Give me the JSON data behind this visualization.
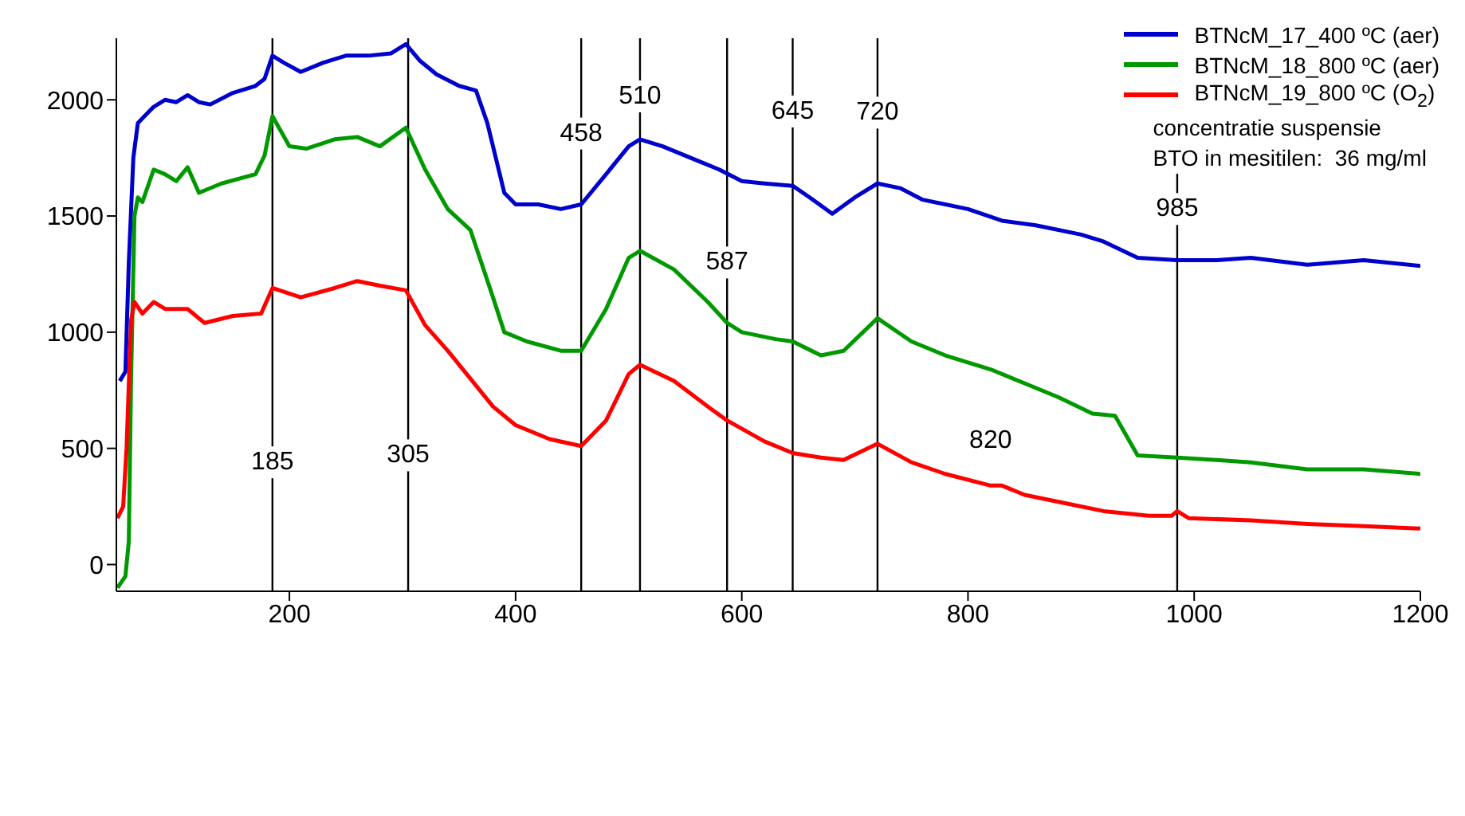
{
  "chart_data": {
    "type": "line",
    "xlim": [
      47,
      1200
    ],
    "xticks": [
      200,
      400,
      600,
      800,
      1000,
      1200
    ],
    "ylim": [
      -115,
      2265
    ],
    "yticks": [
      0,
      500,
      1000,
      1500,
      2000
    ],
    "grid": false,
    "legend": "top right",
    "marker": "none",
    "line_style": "solid",
    "series": [
      {
        "name": "BTNcM_17_400 ºC (aer)",
        "color": "#0000cc",
        "x": [
          50,
          55,
          58,
          62,
          66,
          70,
          80,
          90,
          100,
          110,
          120,
          130,
          150,
          170,
          178,
          185,
          195,
          210,
          230,
          250,
          270,
          290,
          303,
          315,
          330,
          350,
          365,
          375,
          390,
          400,
          420,
          440,
          458,
          480,
          500,
          510,
          530,
          560,
          580,
          600,
          620,
          645,
          660,
          680,
          700,
          720,
          740,
          760,
          800,
          830,
          860,
          900,
          920,
          950,
          985,
          1020,
          1050,
          1100,
          1150,
          1200
        ],
        "values": [
          790,
          830,
          1300,
          1750,
          1900,
          1920,
          1970,
          2000,
          1990,
          2020,
          1990,
          1980,
          2030,
          2060,
          2090,
          2190,
          2160,
          2120,
          2160,
          2190,
          2190,
          2200,
          2240,
          2170,
          2110,
          2060,
          2040,
          1900,
          1600,
          1550,
          1550,
          1530,
          1550,
          1680,
          1800,
          1830,
          1800,
          1740,
          1700,
          1650,
          1640,
          1630,
          1580,
          1510,
          1580,
          1640,
          1620,
          1570,
          1530,
          1480,
          1460,
          1420,
          1390,
          1320,
          1310,
          1310,
          1320,
          1290,
          1310,
          1285
        ]
      },
      {
        "name": "BTNcM_18_800 ºC (aer)",
        "color": "#009900",
        "x": [
          48,
          55,
          58,
          60,
          63,
          66,
          70,
          80,
          90,
          100,
          110,
          120,
          140,
          170,
          178,
          185,
          200,
          215,
          240,
          260,
          280,
          303,
          320,
          340,
          360,
          380,
          390,
          410,
          440,
          458,
          480,
          500,
          510,
          540,
          570,
          587,
          600,
          630,
          645,
          670,
          690,
          720,
          750,
          780,
          820,
          850,
          880,
          910,
          930,
          950,
          985,
          1020,
          1050,
          1100,
          1150,
          1200
        ],
        "values": [
          -100,
          -50,
          100,
          800,
          1500,
          1580,
          1560,
          1700,
          1680,
          1650,
          1710,
          1600,
          1640,
          1680,
          1760,
          1930,
          1800,
          1790,
          1830,
          1840,
          1800,
          1880,
          1700,
          1530,
          1440,
          1150,
          1000,
          960,
          920,
          920,
          1100,
          1320,
          1350,
          1270,
          1130,
          1040,
          1000,
          970,
          960,
          900,
          920,
          1060,
          960,
          900,
          840,
          780,
          720,
          650,
          640,
          470,
          460,
          450,
          440,
          410,
          410,
          390
        ]
      },
      {
        "name": "BTNcM_19_800 ºC (O$_{2}$)",
        "color": "#ff0000",
        "x": [
          48,
          53,
          56,
          60,
          63,
          70,
          80,
          90,
          110,
          125,
          150,
          175,
          185,
          210,
          240,
          260,
          280,
          303,
          320,
          340,
          360,
          380,
          400,
          430,
          458,
          480,
          500,
          510,
          540,
          570,
          587,
          620,
          645,
          670,
          690,
          720,
          750,
          780,
          820,
          830,
          850,
          880,
          920,
          960,
          980,
          985,
          995,
          1050,
          1100,
          1150,
          1200
        ],
        "values": [
          200,
          250,
          500,
          1050,
          1130,
          1080,
          1130,
          1100,
          1100,
          1040,
          1070,
          1080,
          1190,
          1150,
          1190,
          1220,
          1200,
          1180,
          1030,
          920,
          800,
          680,
          600,
          540,
          510,
          620,
          820,
          860,
          790,
          680,
          620,
          530,
          480,
          460,
          450,
          520,
          440,
          390,
          340,
          340,
          300,
          270,
          230,
          210,
          210,
          230,
          200,
          190,
          175,
          165,
          155
        ]
      }
    ],
    "ref_lines": [
      {
        "axis": "x",
        "value": 185
      },
      {
        "axis": "x",
        "value": 305
      },
      {
        "axis": "x",
        "value": 458
      },
      {
        "axis": "x",
        "value": 510
      },
      {
        "axis": "x",
        "value": 587
      },
      {
        "axis": "x",
        "value": 645
      },
      {
        "axis": "x",
        "value": 720
      },
      {
        "axis": "x",
        "value": 985
      }
    ],
    "annotations": [
      {
        "text": "185",
        "x": 185,
        "y": 440
      },
      {
        "text": "305",
        "x": 305,
        "y": 470
      },
      {
        "text": "458",
        "x": 458,
        "y": 1855
      },
      {
        "text": "510",
        "x": 510,
        "y": 2015
      },
      {
        "text": "587",
        "x": 587,
        "y": 1300
      },
      {
        "text": "645",
        "x": 645,
        "y": 1950
      },
      {
        "text": "720",
        "x": 720,
        "y": 1945
      },
      {
        "text": "820",
        "x": 820,
        "y": 340
      },
      {
        "text": "985",
        "x": 985,
        "y": 1530
      },
      "concentratie suspensie\nBTO in mesitilen:  36 mg/ml"
    ]
  }
}
